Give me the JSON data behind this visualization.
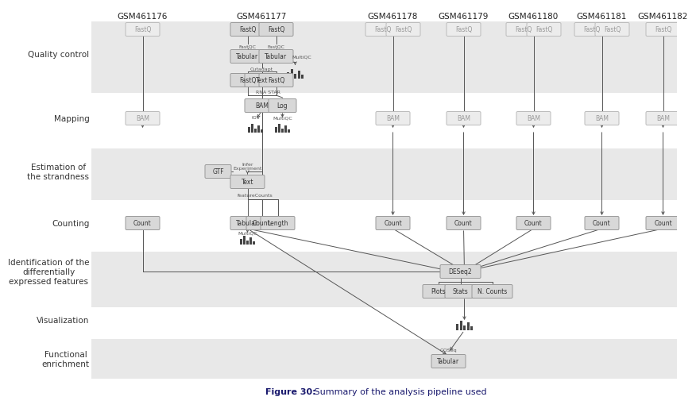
{
  "title_bold": "Figure 30:",
  "title_rest": " Summary of the analysis pipeline used",
  "bg_color": "#ffffff",
  "band_colors": [
    "#e8e8e8",
    "#ffffff",
    "#e8e8e8",
    "#ffffff",
    "#e8e8e8",
    "#ffffff",
    "#e8e8e8"
  ],
  "sample_labels": [
    "GSM461176",
    "GSM461177",
    "GSM461178",
    "GSM461179",
    "GSM461180",
    "GSM461181",
    "GSM461182"
  ],
  "stage_labels": [
    "Quality control",
    "Mapping",
    "Estimation of\nthe strandness",
    "Counting",
    "Identification of the\ndifferentially\nexpressed features",
    "Visualization",
    "Functional\nenrichment"
  ],
  "box_color_main": "#d8d8d8",
  "box_color_faint": "#ececec",
  "box_edge_main": "#999999",
  "box_edge_faint": "#bbbbbb",
  "box_text_main": "#333333",
  "box_text_faint": "#999999",
  "arrow_color": "#555555",
  "label_color": "#333333",
  "bar_color": "#444444",
  "caption_bold_color": "#1a1a6e",
  "caption_rest_color": "#1a1a6e"
}
